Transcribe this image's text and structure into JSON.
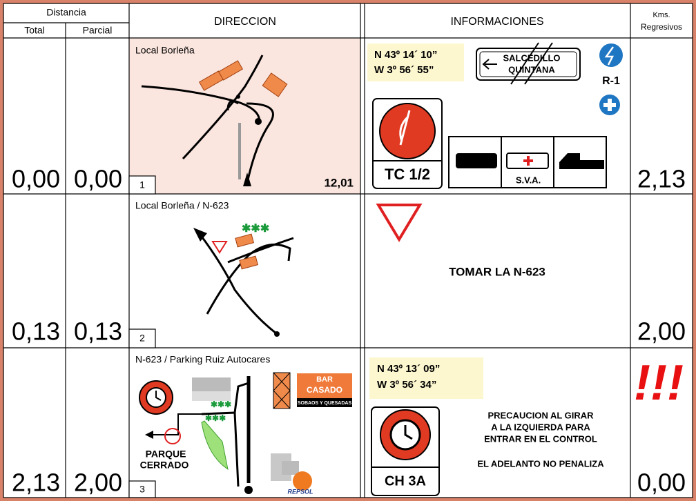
{
  "header": {
    "distancia": "Distancia",
    "total": "Total",
    "parcial": "Parcial",
    "direccion": "DIRECCION",
    "informaciones": "INFORMACIONES",
    "kms": "Kms.",
    "regresivos": "Regresivos"
  },
  "rows": [
    {
      "total": "0,00",
      "parcial": "0,00",
      "place": "Local Borleña",
      "number": "1",
      "distance": "12,01",
      "coords": [
        "N  43º 14´ 10”",
        "W   3º 56´ 55”"
      ],
      "sign": [
        "SALCEDILLO",
        "QUINTANA"
      ],
      "road_sign": "R-1",
      "control": "TC 1/2",
      "service": "S.V.A.",
      "kms": "2,13"
    },
    {
      "total": "0,13",
      "parcial": "0,13",
      "place": "Local Borleña / N-623",
      "number": "2",
      "instruction": "TOMAR LA N-623",
      "kms": "2,00"
    },
    {
      "total": "2,13",
      "parcial": "2,00",
      "place": "N-623 / Parking Ruiz Autocares",
      "number": "3",
      "parque": [
        "PARQUE",
        "CERRADO"
      ],
      "bar": [
        "BAR",
        "CASADO",
        "SOBAOS Y QUESADAS"
      ],
      "brand": "REPSOL",
      "coords": [
        "N  43º 13´ 09”",
        "W   3º 56´ 34”"
      ],
      "notes": [
        "PRECAUCION AL GIRAR",
        "A LA IZQUIERDA PARA",
        "ENTRAR EN EL CONTROL",
        "EL ADELANTO NO PENALIZA"
      ],
      "control": "CH 3A",
      "warning": "!!!",
      "kms": "0,00"
    }
  ]
}
